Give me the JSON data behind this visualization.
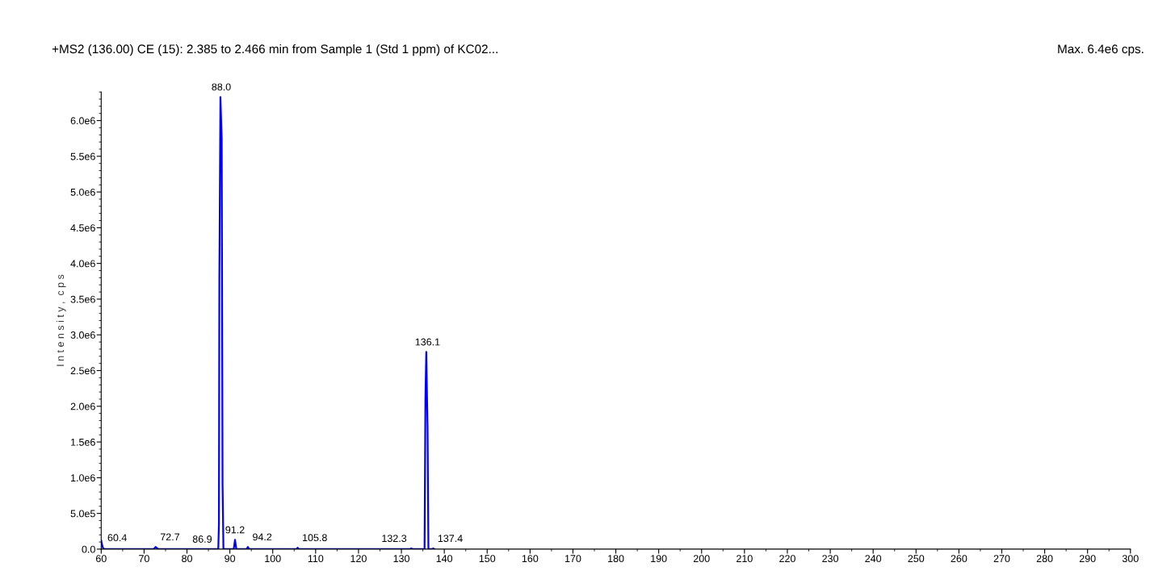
{
  "chart_data": {
    "type": "line",
    "title": "+MS2 (136.00) CE (15): 2.385 to 2.466 min from Sample 1 (Std 1 ppm) of KC02...",
    "subtitle": "Max. 6.4e6 cps.",
    "ylabel": "I n t e n s i t y ,  c p s",
    "series": [
      {
        "color": "#0000ff",
        "x": [
          60.0,
          60.2,
          60.4,
          60.7,
          61.0,
          72.2,
          72.7,
          73.3,
          86.9,
          87.3,
          87.45,
          87.55,
          87.8,
          88.1,
          88.3,
          88.5,
          90.9,
          91.2,
          91.5,
          93.9,
          94.2,
          94.5,
          105.5,
          105.8,
          106.1,
          132.0,
          132.3,
          132.6,
          135.4,
          135.6,
          135.8,
          136.1,
          136.3,
          136.5,
          137.2,
          137.4,
          137.7
        ],
        "values": [
          120000,
          60000,
          20000,
          0,
          0,
          0,
          30000,
          0,
          0,
          0,
          350000,
          3750000,
          6330000,
          5750000,
          900000,
          0,
          0,
          130000,
          0,
          0,
          30000,
          0,
          0,
          20000,
          0,
          0,
          10000,
          0,
          0,
          2100000,
          2760000,
          1700000,
          0,
          0,
          0,
          10000,
          0
        ]
      }
    ],
    "xlim": [
      60,
      300
    ],
    "xticks": [
      60,
      70,
      80,
      90,
      100,
      110,
      120,
      130,
      140,
      150,
      160,
      170,
      180,
      190,
      200,
      210,
      220,
      230,
      240,
      250,
      260,
      270,
      280,
      290,
      300
    ],
    "ylim": [
      0,
      6400000
    ],
    "yticks": [
      {
        "value": 0,
        "label": "0.0"
      },
      {
        "value": 500000,
        "label": "5.0e5"
      },
      {
        "value": 1000000,
        "label": "1.0e6"
      },
      {
        "value": 1500000,
        "label": "1.5e6"
      },
      {
        "value": 2000000,
        "label": "2.0e6"
      },
      {
        "value": 2500000,
        "label": "2.5e6"
      },
      {
        "value": 3000000,
        "label": "3.0e6"
      },
      {
        "value": 3500000,
        "label": "3.5e6"
      },
      {
        "value": 4000000,
        "label": "4.0e6"
      },
      {
        "value": 4500000,
        "label": "4.5e6"
      },
      {
        "value": 5000000,
        "label": "5.0e6"
      },
      {
        "value": 5500000,
        "label": "5.5e6"
      },
      {
        "value": 6000000,
        "label": "6.0e6"
      }
    ],
    "annotations": [
      {
        "text": "60.4",
        "x": 60.4,
        "y": 20000
      },
      {
        "text": "72.7",
        "x": 72.7,
        "y": 30000
      },
      {
        "text": "86.9",
        "x": 86.9,
        "y": 0
      },
      {
        "text": "88.0",
        "x": 88.0,
        "y": 6330000
      },
      {
        "text": "91.2",
        "x": 91.2,
        "y": 130000
      },
      {
        "text": "94.2",
        "x": 94.2,
        "y": 30000
      },
      {
        "text": "105.8",
        "x": 105.8,
        "y": 20000
      },
      {
        "text": "132.3",
        "x": 132.3,
        "y": 10000
      },
      {
        "text": "136.1",
        "x": 136.1,
        "y": 2760000
      },
      {
        "text": "137.4",
        "x": 137.4,
        "y": 10000
      }
    ],
    "grid": false,
    "legend": false,
    "marker": "none",
    "line_style": "solid"
  }
}
